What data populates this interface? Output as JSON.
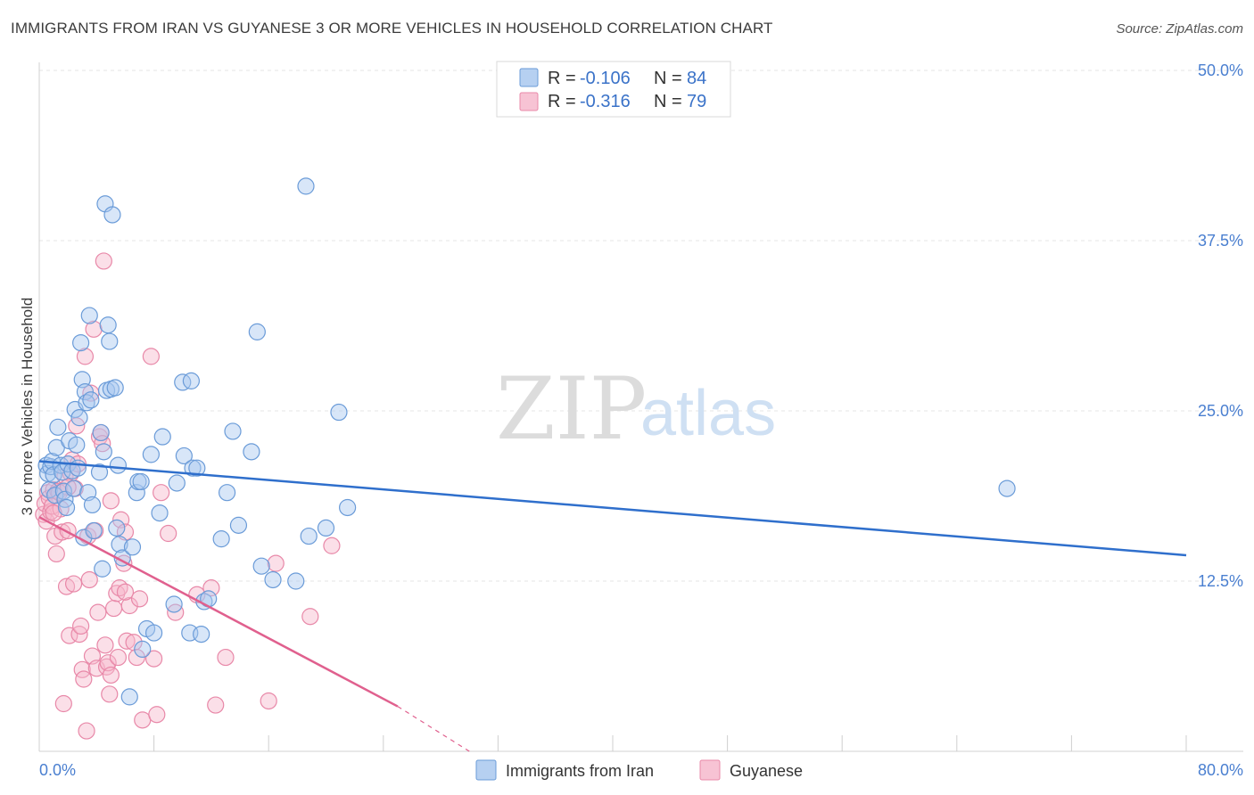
{
  "title": "IMMIGRANTS FROM IRAN VS GUYANESE 3 OR MORE VEHICLES IN HOUSEHOLD CORRELATION CHART",
  "source": "Source: ZipAtlas.com",
  "watermark": {
    "zip": "ZIP",
    "atlas": "atlas"
  },
  "legend": {
    "rows": [
      {
        "r_label": "R =",
        "r_value": "-0.106",
        "n_label": "N =",
        "n_value": "84"
      },
      {
        "r_label": "R =",
        "r_value": "-0.316",
        "n_label": "N =",
        "n_value": "79"
      }
    ]
  },
  "bottom_legend": [
    "Immigrants from Iran",
    "Guyanese"
  ],
  "colors": {
    "blue_fill": "#a9c8ef",
    "blue_stroke": "#6a9bd8",
    "blue_line": "#2f6fcc",
    "pink_fill": "#f6b8cc",
    "pink_stroke": "#e888a8",
    "pink_line": "#e0608e"
  },
  "chart_data": {
    "type": "scatter",
    "title": "IMMIGRANTS FROM IRAN VS GUYANESE 3 OR MORE VEHICLES IN HOUSEHOLD CORRELATION CHART",
    "xlabel": "",
    "ylabel": "3 or more Vehicles in Household",
    "xlim": [
      0,
      80
    ],
    "ylim": [
      0,
      50
    ],
    "x_tick_labels": [
      "0.0%",
      "80.0%"
    ],
    "y_ticks": [
      12.5,
      25.0,
      37.5,
      50.0
    ],
    "y_tick_labels": [
      "12.5%",
      "25.0%",
      "37.5%",
      "50.0%"
    ],
    "grid": true,
    "legend_position": "top-center",
    "series": [
      {
        "name": "Immigrants from Iran",
        "r": -0.106,
        "n": 84,
        "trend": {
          "x": [
            0,
            80
          ],
          "y": [
            21.3,
            14.4
          ]
        },
        "points": [
          [
            0.5,
            21.0
          ],
          [
            0.6,
            20.4
          ],
          [
            0.7,
            19.2
          ],
          [
            0.8,
            20.9
          ],
          [
            0.9,
            21.3
          ],
          [
            1.0,
            20.3
          ],
          [
            1.1,
            18.8
          ],
          [
            1.2,
            22.3
          ],
          [
            1.3,
            23.8
          ],
          [
            1.5,
            21.0
          ],
          [
            1.6,
            20.5
          ],
          [
            1.7,
            19.1
          ],
          [
            1.8,
            18.5
          ],
          [
            1.9,
            17.9
          ],
          [
            2.0,
            21.1
          ],
          [
            2.1,
            22.8
          ],
          [
            2.3,
            20.6
          ],
          [
            2.4,
            19.3
          ],
          [
            2.5,
            25.1
          ],
          [
            2.6,
            22.5
          ],
          [
            2.7,
            20.8
          ],
          [
            2.8,
            24.5
          ],
          [
            2.9,
            30.0
          ],
          [
            3.0,
            27.3
          ],
          [
            3.1,
            15.7
          ],
          [
            3.2,
            26.4
          ],
          [
            3.3,
            25.6
          ],
          [
            3.4,
            19.0
          ],
          [
            3.5,
            32.0
          ],
          [
            3.6,
            25.8
          ],
          [
            3.7,
            18.1
          ],
          [
            3.8,
            16.2
          ],
          [
            4.2,
            20.5
          ],
          [
            4.3,
            23.4
          ],
          [
            4.4,
            13.4
          ],
          [
            4.5,
            22.0
          ],
          [
            4.6,
            40.2
          ],
          [
            4.7,
            26.5
          ],
          [
            4.8,
            31.3
          ],
          [
            4.9,
            30.1
          ],
          [
            5.0,
            26.6
          ],
          [
            5.1,
            39.4
          ],
          [
            5.3,
            26.7
          ],
          [
            5.4,
            16.4
          ],
          [
            5.5,
            21.0
          ],
          [
            5.6,
            15.2
          ],
          [
            5.8,
            14.2
          ],
          [
            6.3,
            4.0
          ],
          [
            6.5,
            15.0
          ],
          [
            6.8,
            19.0
          ],
          [
            6.9,
            19.8
          ],
          [
            7.1,
            19.8
          ],
          [
            7.2,
            7.5
          ],
          [
            7.5,
            9.0
          ],
          [
            7.8,
            21.8
          ],
          [
            8.0,
            8.7
          ],
          [
            8.4,
            17.5
          ],
          [
            8.6,
            23.1
          ],
          [
            9.4,
            10.8
          ],
          [
            9.6,
            19.7
          ],
          [
            10.0,
            27.1
          ],
          [
            10.1,
            21.7
          ],
          [
            10.5,
            8.7
          ],
          [
            10.7,
            20.8
          ],
          [
            11.0,
            20.8
          ],
          [
            11.3,
            8.6
          ],
          [
            11.5,
            11.0
          ],
          [
            11.8,
            11.2
          ],
          [
            12.7,
            15.6
          ],
          [
            13.1,
            19.0
          ],
          [
            13.5,
            23.5
          ],
          [
            13.9,
            16.6
          ],
          [
            14.8,
            22.0
          ],
          [
            15.2,
            30.8
          ],
          [
            15.5,
            13.6
          ],
          [
            16.3,
            12.6
          ],
          [
            18.6,
            41.5
          ],
          [
            18.8,
            15.8
          ],
          [
            20.0,
            16.4
          ],
          [
            20.9,
            24.9
          ],
          [
            21.5,
            17.9
          ],
          [
            67.5,
            19.3
          ],
          [
            17.9,
            12.5
          ],
          [
            10.6,
            27.2
          ]
        ]
      },
      {
        "name": "Guyanese",
        "r": -0.316,
        "n": 79,
        "trend": {
          "x": [
            0,
            25
          ],
          "y": [
            17.2,
            3.3
          ]
        },
        "trend_dashed": {
          "x": [
            25,
            30
          ],
          "y": [
            3.3,
            0.0
          ]
        },
        "points": [
          [
            0.3,
            17.4
          ],
          [
            0.4,
            18.2
          ],
          [
            0.5,
            16.9
          ],
          [
            0.6,
            19.0
          ],
          [
            0.7,
            18.6
          ],
          [
            0.8,
            17.6
          ],
          [
            0.9,
            18.0
          ],
          [
            1.0,
            19.2
          ],
          [
            1.1,
            15.8
          ],
          [
            1.2,
            14.5
          ],
          [
            1.3,
            19.1
          ],
          [
            1.4,
            19.0
          ],
          [
            1.5,
            17.8
          ],
          [
            1.6,
            16.1
          ],
          [
            1.7,
            3.5
          ],
          [
            1.8,
            20.2
          ],
          [
            1.9,
            12.1
          ],
          [
            2.0,
            16.2
          ],
          [
            2.1,
            8.5
          ],
          [
            2.2,
            20.4
          ],
          [
            2.3,
            21.4
          ],
          [
            2.4,
            12.3
          ],
          [
            2.5,
            19.3
          ],
          [
            2.6,
            23.9
          ],
          [
            2.7,
            21.1
          ],
          [
            2.8,
            8.6
          ],
          [
            2.9,
            9.2
          ],
          [
            3.0,
            6.0
          ],
          [
            3.1,
            5.3
          ],
          [
            3.2,
            29.0
          ],
          [
            3.3,
            1.5
          ],
          [
            3.4,
            15.8
          ],
          [
            3.5,
            12.6
          ],
          [
            3.6,
            26.3
          ],
          [
            3.7,
            7.0
          ],
          [
            3.8,
            31.0
          ],
          [
            3.9,
            16.2
          ],
          [
            4.0,
            6.1
          ],
          [
            4.1,
            10.2
          ],
          [
            4.2,
            23.1
          ],
          [
            4.3,
            23.4
          ],
          [
            4.4,
            22.6
          ],
          [
            4.5,
            36.0
          ],
          [
            4.6,
            7.8
          ],
          [
            4.7,
            6.2
          ],
          [
            4.8,
            6.5
          ],
          [
            4.9,
            4.2
          ],
          [
            5.0,
            5.6
          ],
          [
            5.2,
            10.5
          ],
          [
            5.4,
            11.6
          ],
          [
            5.5,
            6.9
          ],
          [
            5.6,
            12.0
          ],
          [
            5.7,
            17.0
          ],
          [
            5.9,
            13.8
          ],
          [
            6.0,
            16.1
          ],
          [
            6.1,
            8.1
          ],
          [
            6.3,
            10.7
          ],
          [
            6.6,
            8.0
          ],
          [
            6.8,
            6.9
          ],
          [
            7.0,
            11.2
          ],
          [
            7.2,
            2.3
          ],
          [
            7.8,
            29.0
          ],
          [
            8.0,
            6.8
          ],
          [
            8.2,
            2.7
          ],
          [
            8.5,
            19.0
          ],
          [
            9.0,
            16.0
          ],
          [
            9.5,
            10.2
          ],
          [
            11.0,
            11.5
          ],
          [
            12.0,
            12.0
          ],
          [
            12.3,
            3.4
          ],
          [
            13.0,
            6.9
          ],
          [
            16.0,
            3.7
          ],
          [
            16.5,
            13.8
          ],
          [
            18.9,
            9.9
          ],
          [
            20.4,
            15.1
          ],
          [
            1.0,
            17.5
          ],
          [
            2.0,
            19.4
          ],
          [
            5.0,
            18.4
          ],
          [
            6.0,
            11.7
          ]
        ]
      }
    ]
  }
}
